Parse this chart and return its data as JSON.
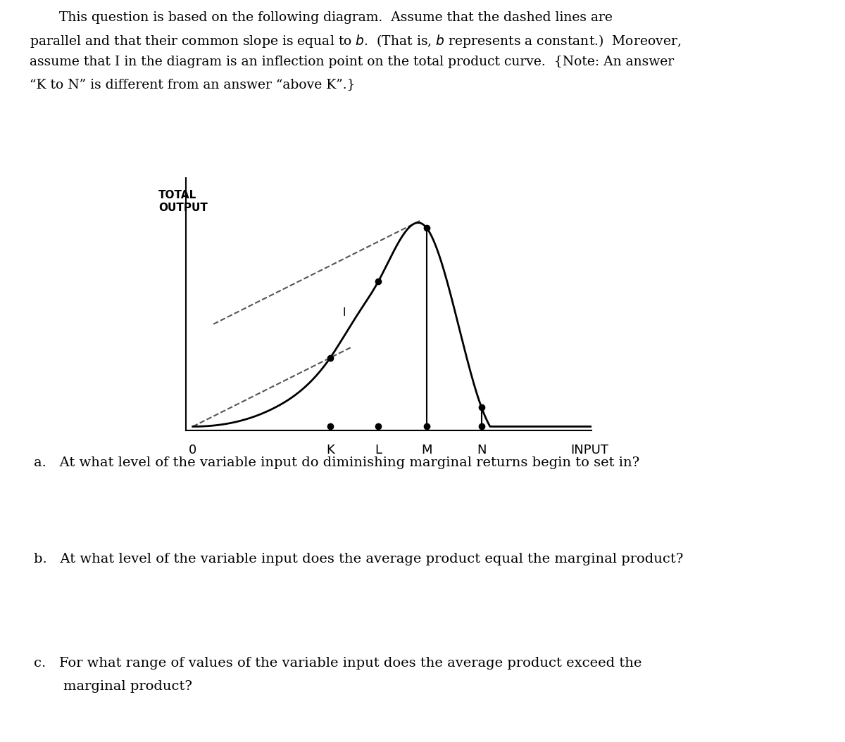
{
  "title_text": "This question is based on the following diagram.  Assume that the dashed lines are\nparallel and that their common slope is equal to $b$.  (That is, $b$ represents a constant.)  Moreover,\nassume that I in the diagram is an inflection point on the total product curve.  {Note: An answer\n“K to N” is different from an answer “above K”.}",
  "ylabel": "TOTAL\nOUTPUT",
  "xlabel": "INPUT",
  "x_ticks": [
    "0",
    "K",
    "L",
    "M",
    "N"
  ],
  "question_a": "a.  At what level of the variable input do diminishing marginal returns begin to set in?",
  "question_b": "b.  At what level of the variable input does the average product equal the marginal product?",
  "question_c_line1": "c.  For what range of values of the variable input does the average product exceed the",
  "question_c_line2": "   marginal product?",
  "bg_color": "#ffffff",
  "curve_color": "#000000",
  "dashed_color": "#555555",
  "dot_color": "#000000",
  "vline_color": "#000000",
  "text_color": "#000000"
}
